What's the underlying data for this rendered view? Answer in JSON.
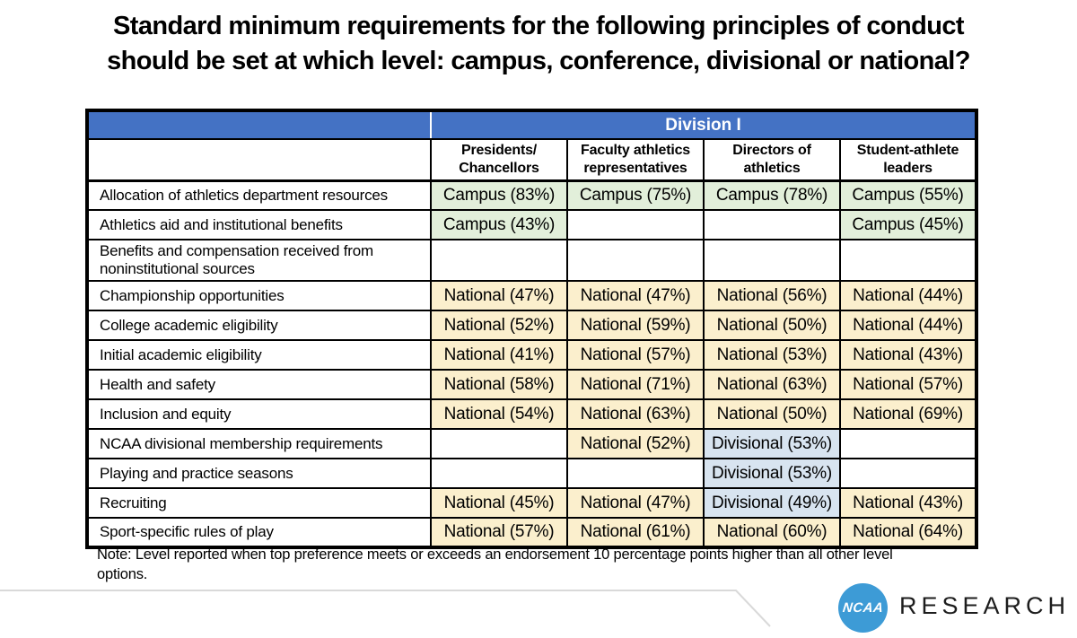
{
  "title": {
    "line1": "Standard minimum requirements for the following principles of conduct",
    "line2": "should be set at which level: campus, conference, divisional or national?"
  },
  "table": {
    "division_header": "Division I",
    "columns": [
      {
        "line1": "Presidents/",
        "line2": "Chancellors"
      },
      {
        "line1": "Faculty athletics",
        "line2": "representatives"
      },
      {
        "line1": "Directors of",
        "line2": "athletics"
      },
      {
        "line1": "Student-athlete",
        "line2": "leaders"
      }
    ],
    "rows": [
      {
        "label": "Allocation of athletics department resources",
        "tall": false,
        "cells": [
          {
            "text": "Campus (83%)",
            "type": "campus"
          },
          {
            "text": "Campus (75%)",
            "type": "campus"
          },
          {
            "text": "Campus (78%)",
            "type": "campus"
          },
          {
            "text": "Campus (55%)",
            "type": "campus"
          }
        ]
      },
      {
        "label": "Athletics aid and institutional benefits",
        "tall": false,
        "cells": [
          {
            "text": "Campus (43%)",
            "type": "campus"
          },
          {
            "text": "",
            "type": "empty"
          },
          {
            "text": "",
            "type": "empty"
          },
          {
            "text": "Campus (45%)",
            "type": "campus"
          }
        ]
      },
      {
        "label": "Benefits and compensation received from noninstitutional sources",
        "tall": true,
        "cells": [
          {
            "text": "",
            "type": "empty"
          },
          {
            "text": "",
            "type": "empty"
          },
          {
            "text": "",
            "type": "empty"
          },
          {
            "text": "",
            "type": "empty"
          }
        ]
      },
      {
        "label": "Championship opportunities",
        "tall": false,
        "cells": [
          {
            "text": "National (47%)",
            "type": "national"
          },
          {
            "text": "National (47%)",
            "type": "national"
          },
          {
            "text": "National (56%)",
            "type": "national"
          },
          {
            "text": "National (44%)",
            "type": "national"
          }
        ]
      },
      {
        "label": "College academic eligibility",
        "tall": false,
        "cells": [
          {
            "text": "National (52%)",
            "type": "national"
          },
          {
            "text": "National (59%)",
            "type": "national"
          },
          {
            "text": "National (50%)",
            "type": "national"
          },
          {
            "text": "National (44%)",
            "type": "national"
          }
        ]
      },
      {
        "label": "Initial academic eligibility",
        "tall": false,
        "cells": [
          {
            "text": "National (41%)",
            "type": "national"
          },
          {
            "text": "National (57%)",
            "type": "national"
          },
          {
            "text": "National (53%)",
            "type": "national"
          },
          {
            "text": "National (43%)",
            "type": "national"
          }
        ]
      },
      {
        "label": "Health and safety",
        "tall": false,
        "cells": [
          {
            "text": "National (58%)",
            "type": "national"
          },
          {
            "text": "National (71%)",
            "type": "national"
          },
          {
            "text": "National (63%)",
            "type": "national"
          },
          {
            "text": "National (57%)",
            "type": "national"
          }
        ]
      },
      {
        "label": "Inclusion and equity",
        "tall": false,
        "cells": [
          {
            "text": "National (54%)",
            "type": "national"
          },
          {
            "text": "National (63%)",
            "type": "national"
          },
          {
            "text": "National (50%)",
            "type": "national"
          },
          {
            "text": "National (69%)",
            "type": "national"
          }
        ]
      },
      {
        "label": "NCAA divisional membership requirements",
        "tall": false,
        "cells": [
          {
            "text": "",
            "type": "empty"
          },
          {
            "text": "National (52%)",
            "type": "national"
          },
          {
            "text": "Divisional (53%)",
            "type": "divisional"
          },
          {
            "text": "",
            "type": "empty"
          }
        ]
      },
      {
        "label": "Playing and practice seasons",
        "tall": false,
        "cells": [
          {
            "text": "",
            "type": "empty"
          },
          {
            "text": "",
            "type": "empty"
          },
          {
            "text": "Divisional (53%)",
            "type": "divisional"
          },
          {
            "text": "",
            "type": "empty"
          }
        ]
      },
      {
        "label": "Recruiting",
        "tall": false,
        "cells": [
          {
            "text": "National (45%)",
            "type": "national"
          },
          {
            "text": "National (47%)",
            "type": "national"
          },
          {
            "text": "Divisional (49%)",
            "type": "divisional"
          },
          {
            "text": "National (43%)",
            "type": "national"
          }
        ]
      },
      {
        "label": "Sport-specific rules of play",
        "tall": false,
        "cells": [
          {
            "text": "National (57%)",
            "type": "national"
          },
          {
            "text": "National (61%)",
            "type": "national"
          },
          {
            "text": "National (60%)",
            "type": "national"
          },
          {
            "text": "National (64%)",
            "type": "national"
          }
        ]
      }
    ]
  },
  "note": {
    "line1": "Note: Level reported when top preference meets or exceeds an endorsement 10 percentage points higher than all other level",
    "line2": "options."
  },
  "footer": {
    "logo_text": "NCAA",
    "brand": "RESEARCH"
  },
  "colors": {
    "header_blue": "#4472C4",
    "campus_green": "#E2EFDA",
    "national_yellow": "#FBEFCD",
    "divisional_blue": "#D8E4F0",
    "ncaa_blue": "#3D9BD6"
  }
}
